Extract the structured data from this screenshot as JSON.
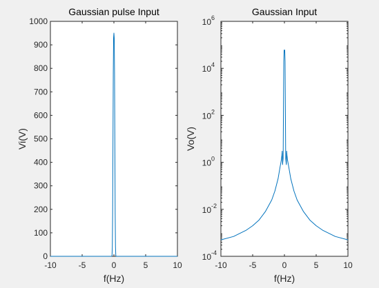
{
  "chart_data": [
    {
      "type": "line",
      "title": "Gaussian pulse Input",
      "xlabel": "f(Hz)",
      "ylabel": "Vi(V)",
      "xlim": [
        -10,
        10
      ],
      "ylim": [
        0,
        1000
      ],
      "yscale": "linear",
      "xticks": [
        "-10",
        "-5",
        "0",
        "5",
        "10"
      ],
      "yticks": [
        "0",
        "100",
        "200",
        "300",
        "400",
        "500",
        "600",
        "700",
        "800",
        "900",
        "1000"
      ],
      "grid": false,
      "line_color": "#0072bd",
      "series": [
        {
          "x": [
            -10,
            -0.35,
            -0.3,
            -0.25,
            -0.2,
            -0.15,
            -0.1,
            -0.05,
            0,
            0.05,
            0.1,
            0.15,
            0.2,
            0.25,
            0.3,
            0.35,
            10
          ],
          "values": [
            0,
            0,
            3,
            40,
            180,
            470,
            780,
            930,
            950,
            930,
            780,
            470,
            180,
            40,
            3,
            0,
            0
          ]
        }
      ]
    },
    {
      "type": "line",
      "title": "Gaussian Input",
      "xlabel": "f(Hz)",
      "ylabel": "Vo(V)",
      "xlim": [
        -10,
        10
      ],
      "ylim": [
        0.0001,
        1000000
      ],
      "yscale": "log",
      "xticks": [
        "-10",
        "-5",
        "0",
        "5",
        "10"
      ],
      "yticks": [
        {
          "base": "10",
          "exp": "-4"
        },
        {
          "base": "10",
          "exp": "-2"
        },
        {
          "base": "10",
          "exp": "0"
        },
        {
          "base": "10",
          "exp": "2"
        },
        {
          "base": "10",
          "exp": "4"
        },
        {
          "base": "10",
          "exp": "6"
        }
      ],
      "grid": false,
      "line_color": "#0072bd",
      "series": [
        {
          "x": [
            -10,
            -8,
            -6,
            -5,
            -4,
            -3,
            -2,
            -1.5,
            -1,
            -0.7,
            -0.5,
            -0.4,
            -0.35,
            -0.3,
            -0.2,
            -0.1,
            -0.05,
            0,
            0.05,
            0.1,
            0.2,
            0.3,
            0.35,
            0.4,
            0.5,
            0.7,
            1,
            1.5,
            2,
            3,
            4,
            5,
            6,
            8,
            10
          ],
          "values": [
            0.0005,
            0.0007,
            0.0013,
            0.002,
            0.0035,
            0.008,
            0.025,
            0.06,
            0.2,
            0.6,
            1.2,
            2,
            3,
            0.8,
            1.5,
            20000,
            60000,
            50000,
            60000,
            20000,
            1.5,
            0.8,
            3,
            2,
            1.2,
            0.6,
            0.2,
            0.06,
            0.025,
            0.008,
            0.0035,
            0.002,
            0.0013,
            0.0007,
            0.0005
          ]
        }
      ]
    }
  ]
}
